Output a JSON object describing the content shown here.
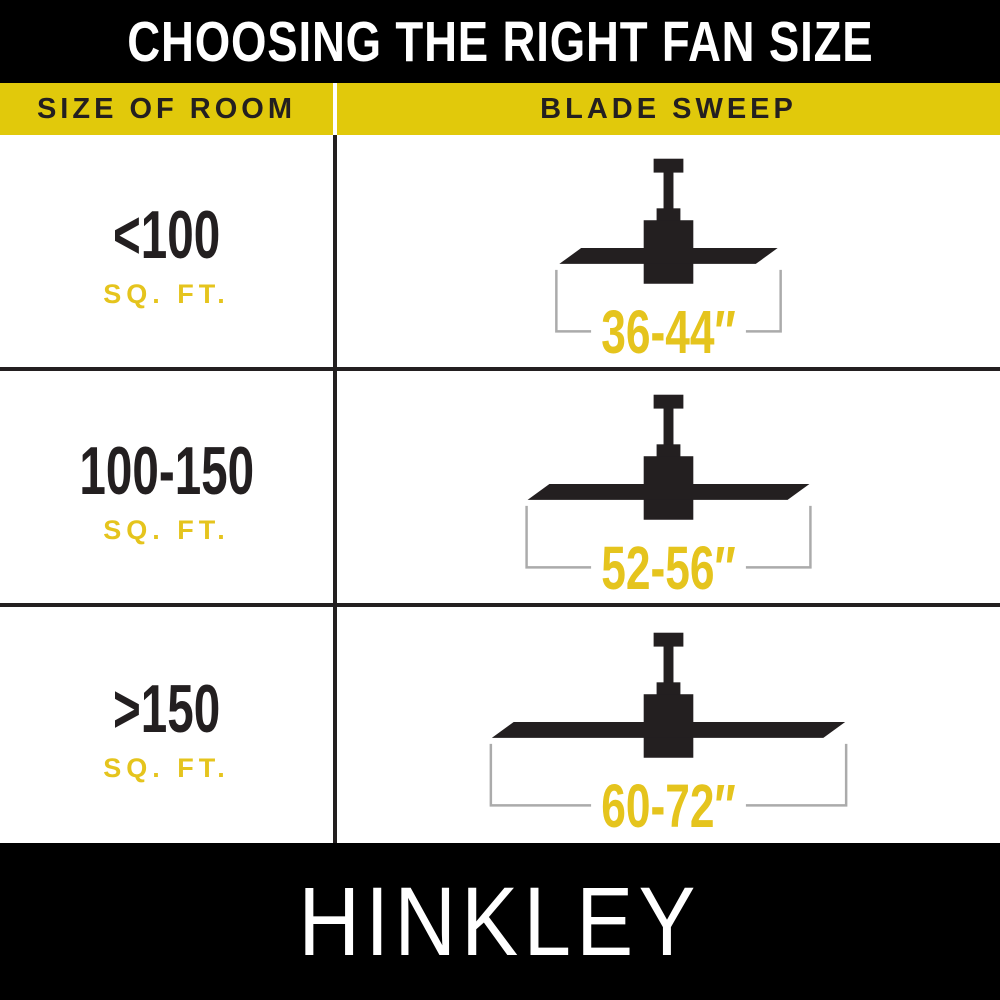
{
  "title": "CHOOSING THE RIGHT FAN SIZE",
  "table": {
    "column_headers": {
      "room": "SIZE OF ROOM",
      "sweep": "BLADE SWEEP"
    },
    "rows": [
      {
        "room_size": "<100",
        "room_unit": "SQ. FT.",
        "blade_sweep": "36-44″",
        "icon": {
          "name": "ceiling-fan-icon",
          "blade_w": 220,
          "bracket_w": 226
        }
      },
      {
        "room_size": "100-150",
        "room_unit": "SQ. FT.",
        "blade_sweep": "52-56″",
        "icon": {
          "name": "ceiling-fan-icon",
          "blade_w": 284,
          "bracket_w": 286
        }
      },
      {
        "room_size": ">150",
        "room_unit": "SQ. FT.",
        "blade_sweep": "60-72″",
        "icon": {
          "name": "ceiling-fan-icon",
          "blade_w": 356,
          "bracket_w": 358
        }
      }
    ]
  },
  "brand": "HINKLEY",
  "colors": {
    "background": "#FFFFFF",
    "band_black": "#000000",
    "ink": "#231F20",
    "yellow_bar": "#E1C90B",
    "yellow_text": "#E5C41D",
    "bracket_gray": "#ABABAB",
    "title_text": "#FFFFFF"
  }
}
